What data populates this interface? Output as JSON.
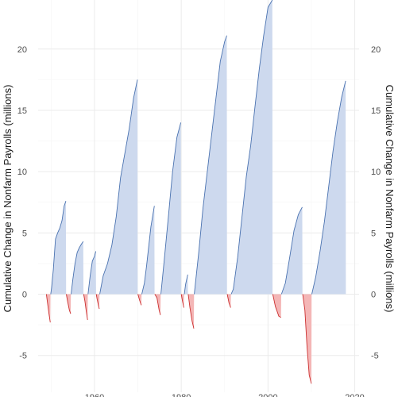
{
  "chart_data": {
    "type": "area",
    "ylabel_left": "Cumulative Change in Nonfarm Payrolls (millions)",
    "ylabel_right": "Cumulative Change in Nonfarm Payrolls (millions)",
    "xlim": [
      1947,
      2021
    ],
    "ylim": [
      -8,
      24
    ],
    "x_ticks": [
      1960,
      1980,
      2000,
      2020
    ],
    "y_ticks": [
      -5,
      0,
      5,
      10,
      15,
      20
    ],
    "grid": true,
    "legend": "none",
    "colors": {
      "expansion_fill": "#cdd9ee",
      "expansion_line": "#4a72b0",
      "contraction_fill": "#f4b6b6",
      "contraction_line": "#cc2f2f"
    },
    "series": [
      {
        "phase": "contraction",
        "points": [
          [
            1948.9,
            0
          ],
          [
            1949.2,
            -0.8
          ],
          [
            1949.5,
            -1.6
          ],
          [
            1949.8,
            -2.3
          ],
          [
            1949.85,
            0
          ]
        ]
      },
      {
        "phase": "expansion",
        "points": [
          [
            1949.9,
            0
          ],
          [
            1950.1,
            0.5
          ],
          [
            1950.5,
            2.0
          ],
          [
            1951.0,
            4.5
          ],
          [
            1951.5,
            5.0
          ],
          [
            1952.0,
            5.4
          ],
          [
            1952.5,
            6.0
          ],
          [
            1953.0,
            7.2
          ],
          [
            1953.4,
            7.6
          ],
          [
            1953.45,
            0
          ]
        ]
      },
      {
        "phase": "contraction",
        "points": [
          [
            1953.5,
            0
          ],
          [
            1953.8,
            -0.6
          ],
          [
            1954.2,
            -1.3
          ],
          [
            1954.5,
            -1.6
          ],
          [
            1954.55,
            0
          ]
        ]
      },
      {
        "phase": "expansion",
        "points": [
          [
            1954.6,
            0
          ],
          [
            1955.0,
            1.2
          ],
          [
            1955.5,
            2.5
          ],
          [
            1956.0,
            3.4
          ],
          [
            1956.5,
            3.8
          ],
          [
            1957.0,
            4.1
          ],
          [
            1957.4,
            4.3
          ],
          [
            1957.45,
            0
          ]
        ]
      },
      {
        "phase": "contraction",
        "points": [
          [
            1957.5,
            0
          ],
          [
            1957.8,
            -0.6
          ],
          [
            1958.1,
            -1.4
          ],
          [
            1958.4,
            -2.1
          ],
          [
            1958.45,
            0
          ]
        ]
      },
      {
        "phase": "expansion",
        "points": [
          [
            1958.5,
            0
          ],
          [
            1959.0,
            1.5
          ],
          [
            1959.5,
            2.7
          ],
          [
            1960.0,
            3.1
          ],
          [
            1960.3,
            3.5
          ],
          [
            1960.35,
            0
          ]
        ]
      },
      {
        "phase": "contraction",
        "points": [
          [
            1960.4,
            0
          ],
          [
            1960.6,
            -0.4
          ],
          [
            1960.9,
            -0.9
          ],
          [
            1961.1,
            -1.2
          ],
          [
            1961.15,
            0
          ]
        ]
      },
      {
        "phase": "expansion",
        "points": [
          [
            1961.2,
            0
          ],
          [
            1962.0,
            1.5
          ],
          [
            1963.0,
            2.5
          ],
          [
            1964.0,
            4.0
          ],
          [
            1965.0,
            6.3
          ],
          [
            1966.0,
            9.5
          ],
          [
            1967.0,
            11.5
          ],
          [
            1968.0,
            13.5
          ],
          [
            1969.0,
            16.0
          ],
          [
            1969.9,
            17.5
          ],
          [
            1969.95,
            0
          ]
        ]
      },
      {
        "phase": "contraction",
        "points": [
          [
            1970.0,
            0
          ],
          [
            1970.4,
            -0.5
          ],
          [
            1970.8,
            -0.9
          ],
          [
            1970.85,
            0
          ]
        ]
      },
      {
        "phase": "expansion",
        "points": [
          [
            1970.9,
            0
          ],
          [
            1971.5,
            0.9
          ],
          [
            1972.0,
            2.3
          ],
          [
            1973.0,
            5.5
          ],
          [
            1973.8,
            7.2
          ],
          [
            1973.85,
            0
          ]
        ]
      },
      {
        "phase": "contraction",
        "points": [
          [
            1973.9,
            0
          ],
          [
            1974.4,
            -0.3
          ],
          [
            1974.9,
            -1.3
          ],
          [
            1975.2,
            -1.7
          ],
          [
            1975.25,
            0
          ]
        ]
      },
      {
        "phase": "expansion",
        "points": [
          [
            1975.3,
            0
          ],
          [
            1976.0,
            2.5
          ],
          [
            1977.0,
            6.2
          ],
          [
            1978.0,
            10.0
          ],
          [
            1979.0,
            12.8
          ],
          [
            1979.9,
            14.0
          ],
          [
            1979.95,
            0
          ]
        ]
      },
      {
        "phase": "contraction",
        "points": [
          [
            1980.0,
            0
          ],
          [
            1980.3,
            -0.6
          ],
          [
            1980.6,
            -1.1
          ],
          [
            1980.65,
            0
          ]
        ]
      },
      {
        "phase": "expansion",
        "points": [
          [
            1980.7,
            0
          ],
          [
            1981.0,
            0.8
          ],
          [
            1981.5,
            1.6
          ],
          [
            1981.55,
            0
          ]
        ]
      },
      {
        "phase": "contraction",
        "points": [
          [
            1981.6,
            0
          ],
          [
            1982.0,
            -1.1
          ],
          [
            1982.5,
            -2.2
          ],
          [
            1982.9,
            -2.8
          ],
          [
            1982.95,
            0
          ]
        ]
      },
      {
        "phase": "expansion",
        "points": [
          [
            1983.0,
            0
          ],
          [
            1984.0,
            3.3
          ],
          [
            1985.0,
            7.0
          ],
          [
            1986.0,
            10.0
          ],
          [
            1987.0,
            13.0
          ],
          [
            1988.0,
            16.0
          ],
          [
            1989.0,
            19.0
          ],
          [
            1990.0,
            20.6
          ],
          [
            1990.5,
            21.1
          ],
          [
            1990.55,
            0
          ]
        ]
      },
      {
        "phase": "contraction",
        "points": [
          [
            1990.6,
            0
          ],
          [
            1991.0,
            -0.7
          ],
          [
            1991.4,
            -1.1
          ],
          [
            1991.45,
            0
          ]
        ]
      },
      {
        "phase": "expansion",
        "points": [
          [
            1991.5,
            0
          ],
          [
            1992.0,
            0.4
          ],
          [
            1993.0,
            3.0
          ],
          [
            1994.0,
            6.3
          ],
          [
            1995.0,
            9.6
          ],
          [
            1996.0,
            12.1
          ],
          [
            1997.0,
            15.3
          ],
          [
            1998.0,
            18.4
          ],
          [
            1999.0,
            21.1
          ],
          [
            2000.0,
            23.4
          ],
          [
            2001.0,
            24.0
          ],
          [
            2001.05,
            0
          ]
        ]
      },
      {
        "phase": "contraction",
        "points": [
          [
            2001.1,
            0
          ],
          [
            2001.7,
            -1.0
          ],
          [
            2002.5,
            -1.8
          ],
          [
            2003.0,
            -1.9
          ],
          [
            2003.05,
            0
          ]
        ]
      },
      {
        "phase": "expansion",
        "points": [
          [
            2003.1,
            0
          ],
          [
            2004.0,
            0.9
          ],
          [
            2005.0,
            3.0
          ],
          [
            2006.0,
            5.2
          ],
          [
            2007.0,
            6.5
          ],
          [
            2007.9,
            7.1
          ],
          [
            2007.95,
            0
          ]
        ]
      },
      {
        "phase": "contraction",
        "points": [
          [
            2008.0,
            0
          ],
          [
            2008.5,
            -1.3
          ],
          [
            2009.0,
            -4.3
          ],
          [
            2009.5,
            -6.6
          ],
          [
            2010.0,
            -7.3
          ],
          [
            2010.05,
            0
          ]
        ]
      },
      {
        "phase": "expansion",
        "points": [
          [
            2010.1,
            0
          ],
          [
            2011.0,
            1.4
          ],
          [
            2012.0,
            3.5
          ],
          [
            2013.0,
            5.9
          ],
          [
            2014.0,
            8.8
          ],
          [
            2015.0,
            11.7
          ],
          [
            2016.0,
            14.1
          ],
          [
            2017.0,
            16.1
          ],
          [
            2017.9,
            17.4
          ],
          [
            2017.95,
            0
          ]
        ]
      }
    ]
  }
}
